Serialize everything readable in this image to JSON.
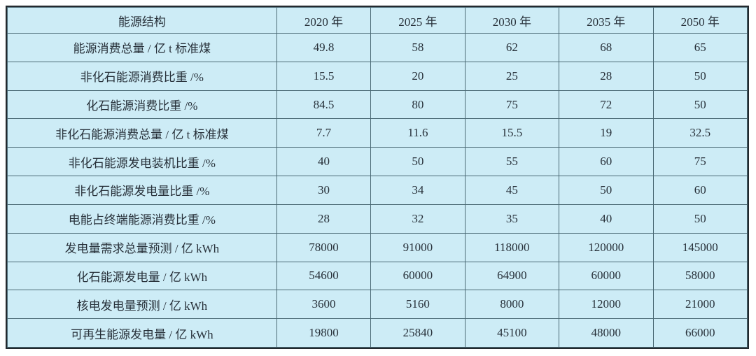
{
  "chart_data": {
    "type": "table",
    "title": "",
    "columns": [
      "能源结构",
      "2020 年",
      "2025 年",
      "2030 年",
      "2035 年",
      "2050 年"
    ],
    "rows": [
      [
        "能源消费总量 / 亿 t 标准煤",
        "49.8",
        "58",
        "62",
        "68",
        "65"
      ],
      [
        "非化石能源消费比重 /%",
        "15.5",
        "20",
        "25",
        "28",
        "50"
      ],
      [
        "化石能源消费比重 /%",
        "84.5",
        "80",
        "75",
        "72",
        "50"
      ],
      [
        "非化石能源消费总量 / 亿 t 标准煤",
        "7.7",
        "11.6",
        "15.5",
        "19",
        "32.5"
      ],
      [
        "非化石能源发电装机比重 /%",
        "40",
        "50",
        "55",
        "60",
        "75"
      ],
      [
        "非化石能源发电量比重 /%",
        "30",
        "34",
        "45",
        "50",
        "60"
      ],
      [
        "电能占终端能源消费比重 /%",
        "28",
        "32",
        "35",
        "40",
        "50"
      ],
      [
        "发电量需求总量预测 / 亿 kWh",
        "78000",
        "91000",
        "118000",
        "120000",
        "145000"
      ],
      [
        "化石能源发电量 / 亿 kWh",
        "54600",
        "60000",
        "64900",
        "60000",
        "58000"
      ],
      [
        "核电发电量预测 / 亿 kWh",
        "3600",
        "5160",
        "8000",
        "12000",
        "21000"
      ],
      [
        "可再生能源发电量 / 亿 kWh",
        "19800",
        "25840",
        "45100",
        "48000",
        "66000"
      ]
    ],
    "layout": {
      "grid": true,
      "header_row": true,
      "text_align": "center"
    }
  },
  "colors": {
    "cell_background": "#cdecf6",
    "grid_line": "#4a6974",
    "outer_border": "#23292e",
    "text": "#273039",
    "page_background": "#ffffff"
  }
}
